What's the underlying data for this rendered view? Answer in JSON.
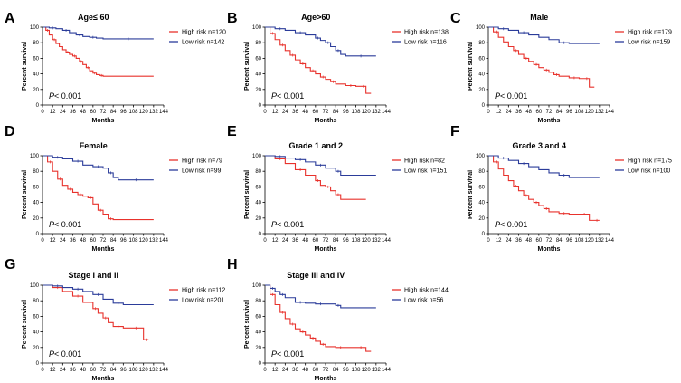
{
  "figure": {
    "colors": {
      "high": "#e8322c",
      "low": "#2b3c9a",
      "axis": "#000000"
    }
  },
  "chart_data": [
    {
      "type": "line",
      "letter": "A",
      "title": "Age≤ 60",
      "xlabel": "Months",
      "ylabel": "Percent survival",
      "xlim": [
        0,
        144
      ],
      "ylim": [
        0,
        100
      ],
      "xticks": [
        "0",
        "12",
        "24",
        "36",
        "48",
        "60",
        "72",
        "84",
        "96",
        "108",
        "120",
        "132",
        "144"
      ],
      "yticks": [
        "0",
        "20",
        "40",
        "60",
        "80",
        "100"
      ],
      "pvalue_prefix": "P",
      "pvalue_text": "< 0.001",
      "series": [
        {
          "name": "High risk n=120",
          "color": "#e8322c",
          "x": [
            0,
            4,
            8,
            12,
            16,
            20,
            24,
            28,
            32,
            36,
            40,
            44,
            48,
            52,
            56,
            60,
            64,
            68,
            72,
            132
          ],
          "y": [
            100,
            96,
            90,
            84,
            79,
            75,
            71,
            68,
            65,
            63,
            60,
            56,
            52,
            48,
            44,
            41,
            39,
            38,
            37,
            37
          ]
        },
        {
          "name": "Low risk n=142",
          "color": "#2b3c9a",
          "x": [
            0,
            8,
            16,
            24,
            32,
            40,
            48,
            56,
            64,
            72,
            132
          ],
          "y": [
            100,
            99,
            98,
            96,
            93,
            90,
            88,
            87,
            86,
            85,
            85
          ]
        }
      ]
    },
    {
      "type": "line",
      "letter": "B",
      "title": "Age>60",
      "xlabel": "Months",
      "ylabel": "Percent survival",
      "xlim": [
        0,
        144
      ],
      "ylim": [
        0,
        100
      ],
      "xticks": [
        "0",
        "12",
        "24",
        "36",
        "48",
        "60",
        "72",
        "84",
        "96",
        "108",
        "120",
        "132",
        "144"
      ],
      "yticks": [
        "0",
        "20",
        "40",
        "60",
        "80",
        "100"
      ],
      "pvalue_prefix": "P",
      "pvalue_text": "< 0.001",
      "series": [
        {
          "name": "High risk n=138",
          "color": "#e8322c",
          "x": [
            0,
            6,
            12,
            18,
            24,
            30,
            36,
            42,
            48,
            54,
            60,
            66,
            72,
            78,
            84,
            96,
            108,
            114,
            120,
            126
          ],
          "y": [
            100,
            92,
            84,
            77,
            70,
            64,
            58,
            53,
            48,
            44,
            40,
            36,
            33,
            30,
            27,
            25,
            24,
            24,
            15,
            15
          ]
        },
        {
          "name": "Low risk n=116",
          "color": "#2b3c9a",
          "x": [
            0,
            12,
            24,
            36,
            48,
            60,
            66,
            72,
            78,
            84,
            90,
            96,
            132
          ],
          "y": [
            100,
            98,
            96,
            93,
            90,
            86,
            83,
            80,
            75,
            70,
            65,
            63,
            63
          ]
        }
      ]
    },
    {
      "type": "line",
      "letter": "C",
      "title": "Male",
      "xlabel": "Months",
      "ylabel": "Percent survival",
      "xlim": [
        0,
        144
      ],
      "ylim": [
        0,
        100
      ],
      "xticks": [
        "0",
        "12",
        "24",
        "36",
        "48",
        "60",
        "72",
        "84",
        "96",
        "108",
        "120",
        "132",
        "144"
      ],
      "yticks": [
        "0",
        "20",
        "40",
        "60",
        "80",
        "100"
      ],
      "pvalue_prefix": "P",
      "pvalue_text": "< 0.001",
      "series": [
        {
          "name": "High risk n=179",
          "color": "#e8322c",
          "x": [
            0,
            6,
            12,
            18,
            24,
            30,
            36,
            42,
            48,
            54,
            60,
            66,
            72,
            78,
            84,
            96,
            108,
            114,
            120,
            126
          ],
          "y": [
            100,
            94,
            87,
            81,
            75,
            70,
            65,
            60,
            56,
            52,
            48,
            45,
            42,
            39,
            37,
            35,
            34,
            34,
            23,
            23
          ]
        },
        {
          "name": "Low risk n=159",
          "color": "#2b3c9a",
          "x": [
            0,
            12,
            24,
            36,
            48,
            60,
            72,
            84,
            96,
            132
          ],
          "y": [
            100,
            98,
            96,
            93,
            90,
            87,
            84,
            80,
            79,
            79
          ]
        }
      ]
    },
    {
      "type": "line",
      "letter": "D",
      "title": "Female",
      "xlabel": "Months",
      "ylabel": "Percent survival",
      "xlim": [
        0,
        144
      ],
      "ylim": [
        0,
        100
      ],
      "xticks": [
        "0",
        "12",
        "24",
        "36",
        "48",
        "60",
        "72",
        "84",
        "96",
        "108",
        "120",
        "132",
        "144"
      ],
      "yticks": [
        "0",
        "20",
        "40",
        "60",
        "80",
        "100"
      ],
      "pvalue_prefix": "P",
      "pvalue_text": "< 0.001",
      "series": [
        {
          "name": "High risk n=79",
          "color": "#e8322c",
          "x": [
            0,
            6,
            12,
            18,
            24,
            30,
            36,
            42,
            48,
            54,
            60,
            66,
            72,
            78,
            84,
            132
          ],
          "y": [
            100,
            92,
            80,
            70,
            62,
            57,
            53,
            50,
            48,
            46,
            38,
            30,
            25,
            19,
            18,
            18
          ]
        },
        {
          "name": "Low risk n=99",
          "color": "#2b3c9a",
          "x": [
            0,
            12,
            24,
            36,
            48,
            60,
            72,
            78,
            84,
            90,
            132
          ],
          "y": [
            100,
            98,
            96,
            93,
            88,
            86,
            84,
            78,
            72,
            69,
            69
          ]
        }
      ]
    },
    {
      "type": "line",
      "letter": "E",
      "title": "Grade 1 and 2",
      "xlabel": "Months",
      "ylabel": "Percent survival",
      "xlim": [
        0,
        144
      ],
      "ylim": [
        0,
        100
      ],
      "xticks": [
        "0",
        "12",
        "24",
        "36",
        "48",
        "60",
        "72",
        "84",
        "96",
        "108",
        "120",
        "132",
        "144"
      ],
      "yticks": [
        "0",
        "20",
        "40",
        "60",
        "80",
        "100"
      ],
      "pvalue_prefix": "P",
      "pvalue_text": "< 0.001",
      "series": [
        {
          "name": "High risk n=82",
          "color": "#e8322c",
          "x": [
            0,
            12,
            24,
            36,
            48,
            60,
            66,
            72,
            78,
            84,
            90,
            120
          ],
          "y": [
            100,
            96,
            90,
            82,
            75,
            68,
            62,
            60,
            55,
            50,
            44,
            44
          ]
        },
        {
          "name": "Low risk n=151",
          "color": "#2b3c9a",
          "x": [
            0,
            12,
            24,
            36,
            48,
            60,
            72,
            84,
            90,
            132
          ],
          "y": [
            100,
            99,
            97,
            95,
            92,
            88,
            84,
            80,
            75,
            75
          ]
        }
      ]
    },
    {
      "type": "line",
      "letter": "F",
      "title": "Grade 3 and 4",
      "xlabel": "Months",
      "ylabel": "Percent survival",
      "xlim": [
        0,
        144
      ],
      "ylim": [
        0,
        100
      ],
      "xticks": [
        "0",
        "12",
        "24",
        "36",
        "48",
        "60",
        "72",
        "84",
        "96",
        "108",
        "120",
        "132",
        "144"
      ],
      "yticks": [
        "0",
        "20",
        "40",
        "60",
        "80",
        "100"
      ],
      "pvalue_prefix": "P",
      "pvalue_text": "< 0.001",
      "series": [
        {
          "name": "High risk n=175",
          "color": "#e8322c",
          "x": [
            0,
            6,
            12,
            18,
            24,
            30,
            36,
            42,
            48,
            54,
            60,
            66,
            72,
            84,
            96,
            108,
            120,
            126,
            132
          ],
          "y": [
            100,
            92,
            83,
            75,
            68,
            61,
            55,
            49,
            44,
            40,
            36,
            32,
            28,
            26,
            25,
            25,
            17,
            17,
            17
          ]
        },
        {
          "name": "Low risk n=100",
          "color": "#2b3c9a",
          "x": [
            0,
            12,
            24,
            36,
            48,
            60,
            72,
            84,
            96,
            132
          ],
          "y": [
            100,
            97,
            94,
            90,
            86,
            82,
            78,
            75,
            72,
            72
          ]
        }
      ]
    },
    {
      "type": "line",
      "letter": "G",
      "title": "Stage I and II",
      "xlabel": "Months",
      "ylabel": "Percent survival",
      "xlim": [
        0,
        144
      ],
      "ylim": [
        0,
        100
      ],
      "xticks": [
        "0",
        "12",
        "24",
        "36",
        "48",
        "60",
        "72",
        "84",
        "96",
        "108",
        "120",
        "132",
        "144"
      ],
      "yticks": [
        "0",
        "20",
        "40",
        "60",
        "80",
        "100"
      ],
      "pvalue_prefix": "P",
      "pvalue_text": "< 0.001",
      "series": [
        {
          "name": "High risk n=112",
          "color": "#e8322c",
          "x": [
            0,
            12,
            24,
            36,
            48,
            60,
            66,
            72,
            78,
            84,
            96,
            108,
            114,
            120,
            126
          ],
          "y": [
            100,
            97,
            92,
            86,
            78,
            70,
            64,
            58,
            52,
            47,
            45,
            45,
            45,
            30,
            30
          ]
        },
        {
          "name": "Low risk n=201",
          "color": "#2b3c9a",
          "x": [
            0,
            12,
            24,
            36,
            48,
            60,
            72,
            84,
            96,
            132
          ],
          "y": [
            100,
            99,
            97,
            95,
            92,
            88,
            82,
            77,
            75,
            75
          ]
        }
      ]
    },
    {
      "type": "line",
      "letter": "H",
      "title": "Stage III and IV",
      "xlabel": "Months",
      "ylabel": "Percent survival",
      "xlim": [
        0,
        144
      ],
      "ylim": [
        0,
        100
      ],
      "xticks": [
        "0",
        "12",
        "24",
        "36",
        "48",
        "60",
        "72",
        "84",
        "96",
        "108",
        "120",
        "132",
        "144"
      ],
      "yticks": [
        "0",
        "20",
        "40",
        "60",
        "80",
        "100"
      ],
      "pvalue_prefix": "P",
      "pvalue_text": "< 0.001",
      "series": [
        {
          "name": "High risk n=144",
          "color": "#e8322c",
          "x": [
            0,
            6,
            12,
            18,
            24,
            30,
            36,
            42,
            48,
            54,
            60,
            66,
            72,
            84,
            96,
            108,
            120,
            126
          ],
          "y": [
            100,
            88,
            75,
            65,
            57,
            50,
            44,
            40,
            36,
            32,
            28,
            24,
            21,
            20,
            20,
            20,
            15,
            15
          ]
        },
        {
          "name": "Low risk n=56",
          "color": "#2b3c9a",
          "x": [
            0,
            6,
            12,
            18,
            24,
            36,
            48,
            60,
            72,
            84,
            90,
            132
          ],
          "y": [
            100,
            96,
            92,
            88,
            84,
            78,
            77,
            76,
            76,
            74,
            71,
            71
          ]
        }
      ]
    }
  ]
}
